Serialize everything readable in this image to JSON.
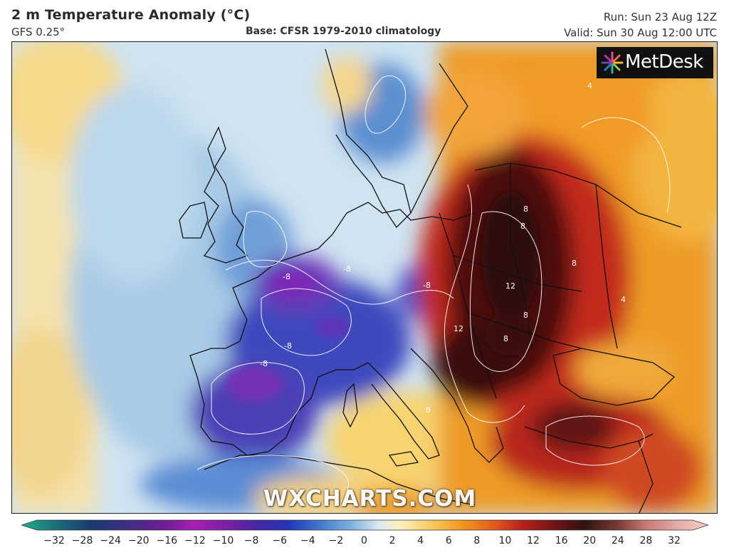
{
  "header": {
    "title": "2 m Temperature Anomaly (°C)",
    "model": "GFS 0.25°",
    "base": "Base: CFSR 1979-2010 climatology",
    "run": "Run: Sun 23 Aug 12Z",
    "valid": "Valid: Sun 30 Aug 12:00 UTC"
  },
  "logo": {
    "text": "MetDesk",
    "icon": "sunburst-icon"
  },
  "watermark": "WXCHARTS.COM",
  "colorbar": {
    "ticks": [
      "−32",
      "−28",
      "−24",
      "−20",
      "−16",
      "−12",
      "−10",
      "−8",
      "−6",
      "−4",
      "−2",
      "0",
      "2",
      "4",
      "6",
      "8",
      "10",
      "12",
      "16",
      "20",
      "24",
      "28",
      "32"
    ],
    "colors": [
      "#1fb089",
      "#1a6f7a",
      "#193c6e",
      "#3a2f83",
      "#6f1e97",
      "#a81fb1",
      "#7a1fa5",
      "#4a25a3",
      "#2436b8",
      "#3c73c8",
      "#7fb1dc",
      "#d9e9f3",
      "#fbf0bf",
      "#f8c85b",
      "#f19a20",
      "#e2581b",
      "#b4201e",
      "#6a1515",
      "#2e1414",
      "#7c3c36",
      "#c97b76",
      "#e6b0aa",
      "#f3cfca"
    ],
    "accent_blue": "#2a3fb5",
    "accent_red": "#5a1010"
  },
  "map_labels": [
    "-8",
    "-8",
    "-8",
    "-8",
    "-8",
    "8",
    "8",
    "8",
    "12",
    "12",
    "8",
    "8",
    "4",
    "8",
    "4"
  ]
}
